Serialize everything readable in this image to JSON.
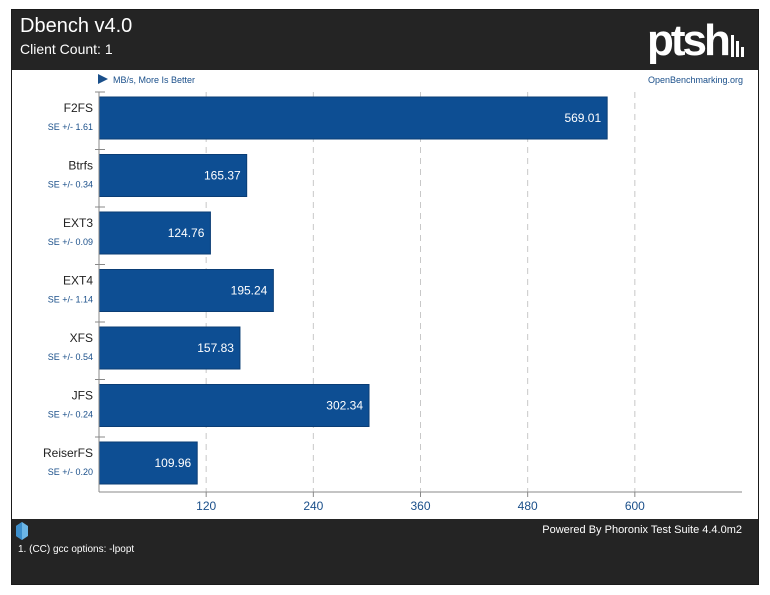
{
  "header": {
    "title": "Dbench v4.0",
    "subtitle": "Client Count: 1",
    "logo_text": "ptsh"
  },
  "footer": {
    "powered_by": "Powered By Phoronix Test Suite 4.4.0m2",
    "footnote": "1. (CC) gcc options: -lpopt"
  },
  "colors": {
    "bar": "#0d4e93",
    "header_bg": "#242424",
    "accent_text": "#1a4f8a"
  },
  "chart_data": {
    "type": "bar",
    "orientation": "horizontal",
    "title": "Dbench v4.0",
    "subtitle": "Client Count: 1",
    "unit_note": "MB/s, More Is Better",
    "source": "OpenBenchmarking.org",
    "categories": [
      "F2FS",
      "Btrfs",
      "EXT3",
      "EXT4",
      "XFS",
      "JFS",
      "ReiserFS"
    ],
    "values": [
      569.01,
      165.37,
      124.76,
      195.24,
      157.83,
      302.34,
      109.96
    ],
    "value_labels": [
      "569.01",
      "165.37",
      "124.76",
      "195.24",
      "157.83",
      "302.34",
      "109.96"
    ],
    "se_labels": [
      "SE +/- 1.61",
      "SE +/- 0.34",
      "SE +/- 0.09",
      "SE +/- 1.14",
      "SE +/- 0.54",
      "SE +/- 0.24",
      "SE +/- 0.20"
    ],
    "x_ticks": [
      120,
      240,
      360,
      480,
      600
    ],
    "xlim": [
      0,
      720
    ],
    "grid": true
  }
}
